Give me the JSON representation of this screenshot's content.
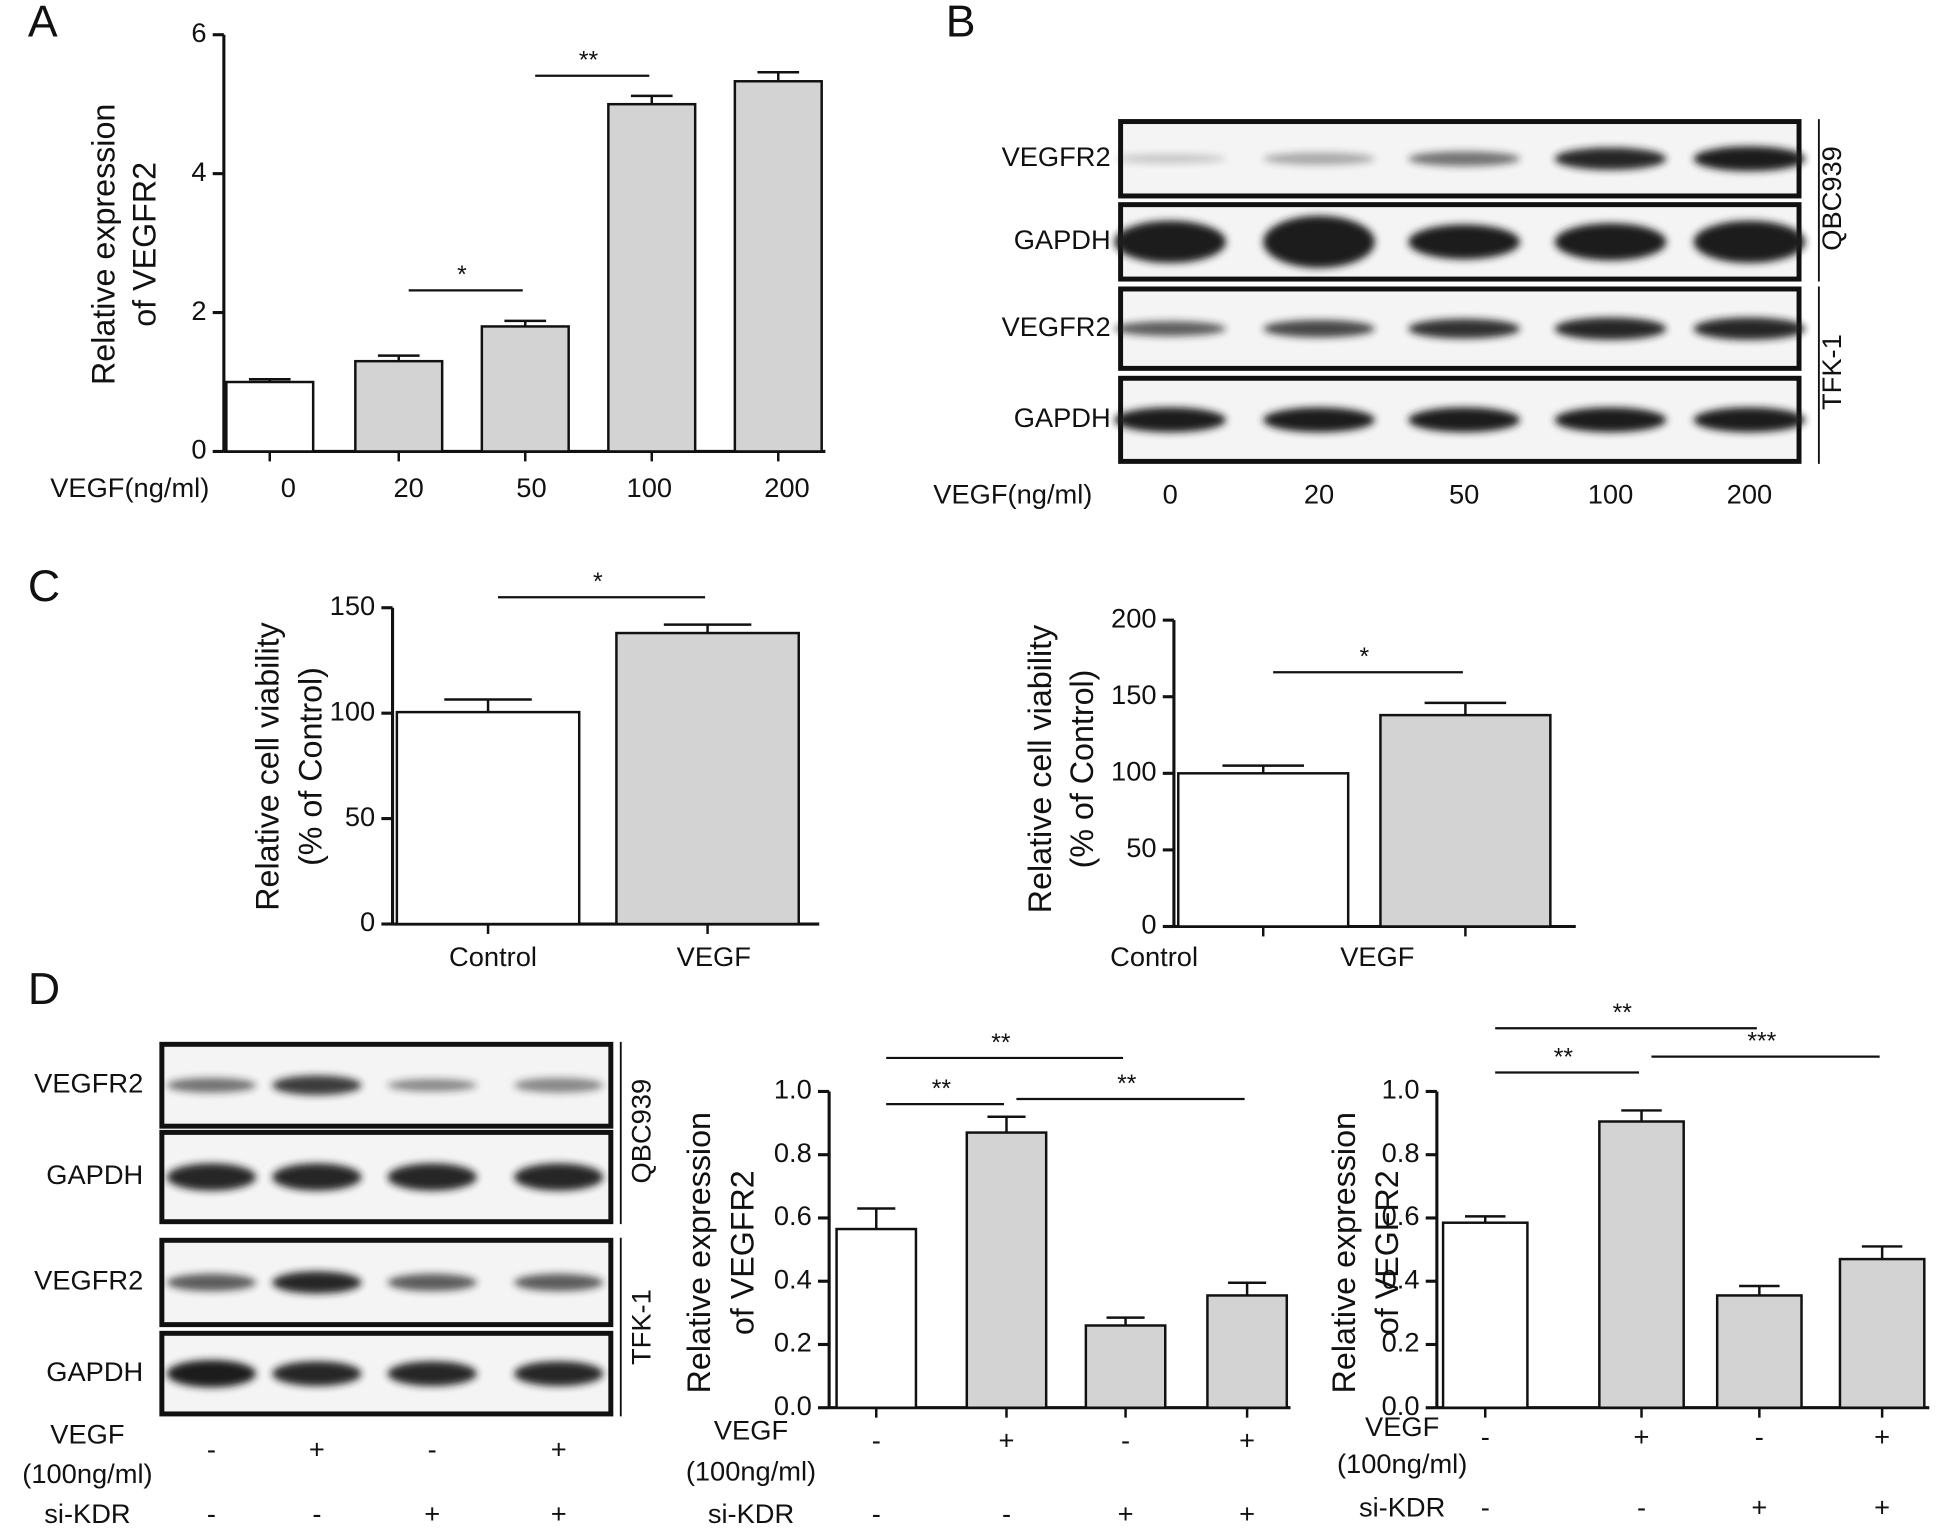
{
  "panel_labels": [
    "A",
    "B",
    "C",
    "D"
  ],
  "chart_data": [
    {
      "type": "bar",
      "y_label": [
        "Relative expression",
        "of VEGFR2"
      ],
      "x_label": "VEGF(ng/ml)",
      "categories": [
        "0",
        "20",
        "50",
        "100",
        "200"
      ],
      "values": [
        1,
        1.3,
        1.8,
        5,
        5.33
      ],
      "errors": [
        0.04,
        0.08,
        0.08,
        0.12,
        0.13
      ],
      "colors": [
        "#ffffff",
        "#d3d3d3",
        "#d3d3d3",
        "#d3d3d3",
        "#d3d3d3"
      ],
      "ylim": [
        0,
        6
      ],
      "yticks": [
        0,
        2,
        4,
        6
      ],
      "significance": [
        {
          "from": 1,
          "to": 2,
          "level": 2.32,
          "label": "*"
        },
        {
          "from": 2,
          "to": 3,
          "level": 5.41,
          "label": "**"
        }
      ]
    },
    {
      "type": "bar",
      "y_label": [
        "Relative  cell viability",
        "(% of Control)"
      ],
      "categories": [
        "Control",
        "VEGF"
      ],
      "values": [
        100.5,
        138
      ],
      "errors": [
        6,
        4
      ],
      "colors": [
        "#ffffff",
        "#d3d3d3"
      ],
      "ylim": [
        0,
        150
      ],
      "yticks": [
        0,
        50,
        100,
        150
      ],
      "significance": [
        {
          "from": 0,
          "to": 1,
          "level": 155,
          "label": "*"
        }
      ]
    },
    {
      "type": "bar",
      "y_label": [
        "Relative  cell viability",
        "(% of Control)"
      ],
      "categories": [
        "Control",
        "VEGF"
      ],
      "values": [
        100,
        138
      ],
      "errors": [
        5,
        8
      ],
      "colors": [
        "#ffffff",
        "#d3d3d3"
      ],
      "ylim": [
        0,
        200
      ],
      "yticks": [
        0,
        50,
        100,
        150,
        200
      ],
      "significance": [
        {
          "from": 0,
          "to": 1,
          "level": 166,
          "label": "*"
        }
      ]
    },
    {
      "type": "bar",
      "y_label": [
        "Relative expression",
        "of VEGFR2"
      ],
      "conditions": [
        {
          "label": [
            "VEGF",
            "(100ng/ml)"
          ],
          "values": [
            "-",
            "+",
            "-",
            "+"
          ]
        },
        {
          "label": [
            "si-KDR"
          ],
          "values": [
            "-",
            "-",
            "+",
            "+"
          ]
        }
      ],
      "values": [
        0.565,
        0.87,
        0.26,
        0.355
      ],
      "errors": [
        0.065,
        0.05,
        0.025,
        0.04
      ],
      "colors": [
        "#ffffff",
        "#d3d3d3",
        "#d3d3d3",
        "#d3d3d3"
      ],
      "ylim": [
        0,
        1
      ],
      "yticks": [
        {
          "value": 0,
          "label": "0.0"
        },
        0.2,
        0.4,
        0.6,
        0.8,
        {
          "value": 1,
          "label": "1.0"
        }
      ],
      "significance": [
        {
          "from": 0,
          "to": 2,
          "level": 1.106,
          "label": "**"
        },
        {
          "from": 0,
          "to": 1,
          "level": 0.96,
          "label": "**"
        },
        {
          "from": 1,
          "to": 3,
          "level": 0.976,
          "label": "**"
        }
      ]
    },
    {
      "type": "bar",
      "y_label": [
        "Relative expression",
        "of VEGFR2"
      ],
      "conditions": [
        {
          "label": [
            "VEGF",
            "(100ng/ml)"
          ],
          "values": [
            "-",
            "+",
            "-",
            "+"
          ]
        },
        {
          "label": [
            "si-KDR"
          ],
          "values": [
            "-",
            "-",
            "+",
            "+"
          ]
        }
      ],
      "values": [
        0.585,
        0.905,
        0.355,
        0.47
      ],
      "errors": [
        0.02,
        0.035,
        0.03,
        0.04
      ],
      "colors": [
        "#ffffff",
        "#d3d3d3",
        "#d3d3d3",
        "#d3d3d3"
      ],
      "ylim": [
        0,
        1
      ],
      "yticks": [
        {
          "value": 0,
          "label": "0.0"
        },
        0.2,
        0.4,
        0.6,
        0.8,
        {
          "value": 1,
          "label": "1.0"
        }
      ],
      "significance": [
        {
          "from": 0,
          "to": 2,
          "level": 1.2,
          "label": "**"
        },
        {
          "from": 0,
          "to": 1,
          "level": 1.06,
          "label": "**"
        },
        {
          "from": 1,
          "to": 3,
          "level": 1.11,
          "label": "***"
        }
      ]
    }
  ],
  "blots": [
    {
      "rows": [
        "VEGFR2",
        "GAPDH",
        "VEGFR2",
        "GAPDH"
      ],
      "cell_lines": [
        "QBC939",
        "TFK-1"
      ],
      "lane_title": "VEGF(ng/ml)",
      "lanes": [
        "0",
        "20",
        "50",
        "100",
        "200"
      ]
    },
    {
      "rows": [
        "VEGFR2",
        "GAPDH",
        "VEGFR2",
        "GAPDH"
      ],
      "cell_lines": [
        "QBC939",
        "TFK-1"
      ],
      "conditions": [
        {
          "label": [
            "VEGF",
            "(100ng/ml)"
          ],
          "values": [
            "-",
            "+",
            "-",
            "+"
          ]
        },
        {
          "label": [
            "si-KDR"
          ],
          "values": [
            "-",
            "-",
            "+",
            "+"
          ]
        }
      ]
    }
  ]
}
